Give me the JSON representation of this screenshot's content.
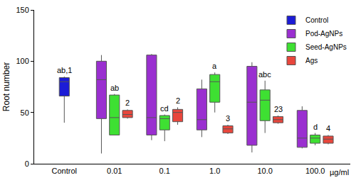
{
  "chart_data": {
    "type": "box",
    "ylabel": "Root number",
    "xlabel": "µg/ml",
    "categories": [
      "Control",
      "0.01",
      "0.1",
      "1.0",
      "10.0",
      "100.0"
    ],
    "ylim": [
      0,
      150
    ],
    "yticks": [
      0,
      50,
      100,
      150
    ],
    "grid": false,
    "legend": "top right",
    "series": [
      {
        "name": "Control",
        "color": "#1c1cd6",
        "min": [
          40,
          null,
          null,
          null,
          null,
          null
        ],
        "q1": [
          66,
          null,
          null,
          null,
          null,
          null
        ],
        "median": [
          80,
          null,
          null,
          null,
          null,
          null
        ],
        "q3": [
          84,
          null,
          null,
          null,
          null,
          null
        ],
        "max": [
          85,
          null,
          null,
          null,
          null,
          null
        ],
        "labels": [
          "ab,1",
          null,
          null,
          null,
          null,
          null
        ]
      },
      {
        "name": "Pod-AgNPs",
        "color": "#9a2fd0",
        "min": [
          null,
          10,
          23,
          26,
          11,
          15
        ],
        "q1": [
          null,
          44,
          28,
          33,
          18,
          16
        ],
        "median": [
          null,
          82,
          45,
          43,
          60,
          25
        ],
        "q3": [
          null,
          100,
          106,
          73,
          95,
          52
        ],
        "max": [
          null,
          106,
          107,
          82,
          99,
          56
        ]
      },
      {
        "name": "Seed-AgNPs",
        "color": "#3ee032",
        "min": [
          null,
          28,
          22,
          50,
          30,
          18
        ],
        "q1": [
          null,
          28,
          33,
          60,
          42,
          20
        ],
        "median": [
          null,
          45,
          44,
          80,
          62,
          25
        ],
        "q3": [
          null,
          67,
          47,
          87,
          72,
          28
        ],
        "max": [
          null,
          68,
          48,
          89,
          81,
          30
        ],
        "labels": [
          null,
          "ab",
          "cd",
          "a",
          "abc",
          "d"
        ]
      },
      {
        "name": "Ags",
        "color": "#e8463c",
        "min": [
          null,
          44,
          38,
          29,
          39,
          19
        ],
        "q1": [
          null,
          45,
          41,
          30,
          40,
          20
        ],
        "median": [
          null,
          48,
          50,
          34,
          43,
          24
        ],
        "q3": [
          null,
          52,
          53,
          37,
          46,
          27
        ],
        "max": [
          null,
          53,
          55,
          38,
          47,
          28
        ],
        "labels": [
          null,
          "2",
          "2",
          "3",
          "23",
          "4"
        ]
      }
    ]
  }
}
